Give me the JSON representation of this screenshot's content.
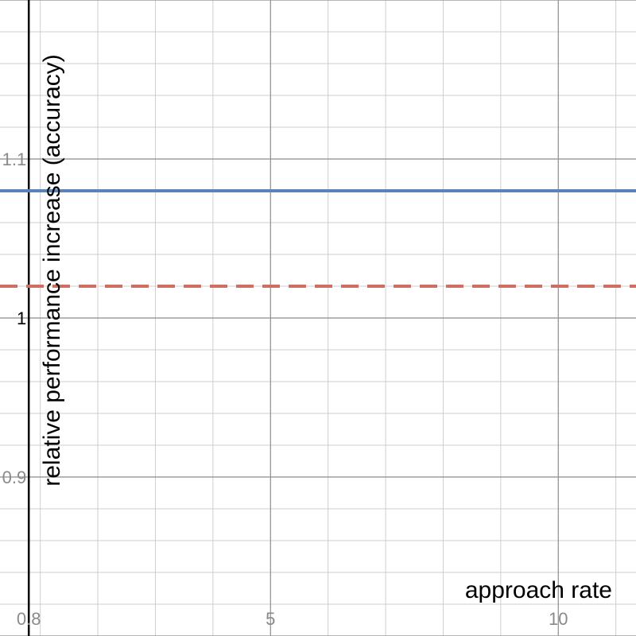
{
  "chart_data": {
    "type": "line",
    "xlabel": "approach rate",
    "ylabel": "relative performance increase (accuracy)",
    "xlim": [
      0.3,
      11.35
    ],
    "ylim": [
      0.8,
      1.2
    ],
    "x_ticks": [
      0.8,
      5,
      10
    ],
    "x_tick_labels": [
      "0.8",
      "5",
      "10"
    ],
    "y_ticks": [
      0.9,
      1,
      1.1
    ],
    "y_tick_labels": [
      "0.9",
      "1",
      "1.1"
    ],
    "minor_step_x": 1,
    "minor_step_y": 0.02,
    "grid": true,
    "series": [
      {
        "values": [
          1.08,
          1.08
        ],
        "x": [
          0.3,
          11.35
        ],
        "color": "#5b84b6",
        "dash": "solid"
      },
      {
        "values": [
          1.02,
          1.02
        ],
        "x": [
          0.3,
          11.35
        ],
        "color": "#cf6f63",
        "dash": "dashed"
      }
    ]
  }
}
